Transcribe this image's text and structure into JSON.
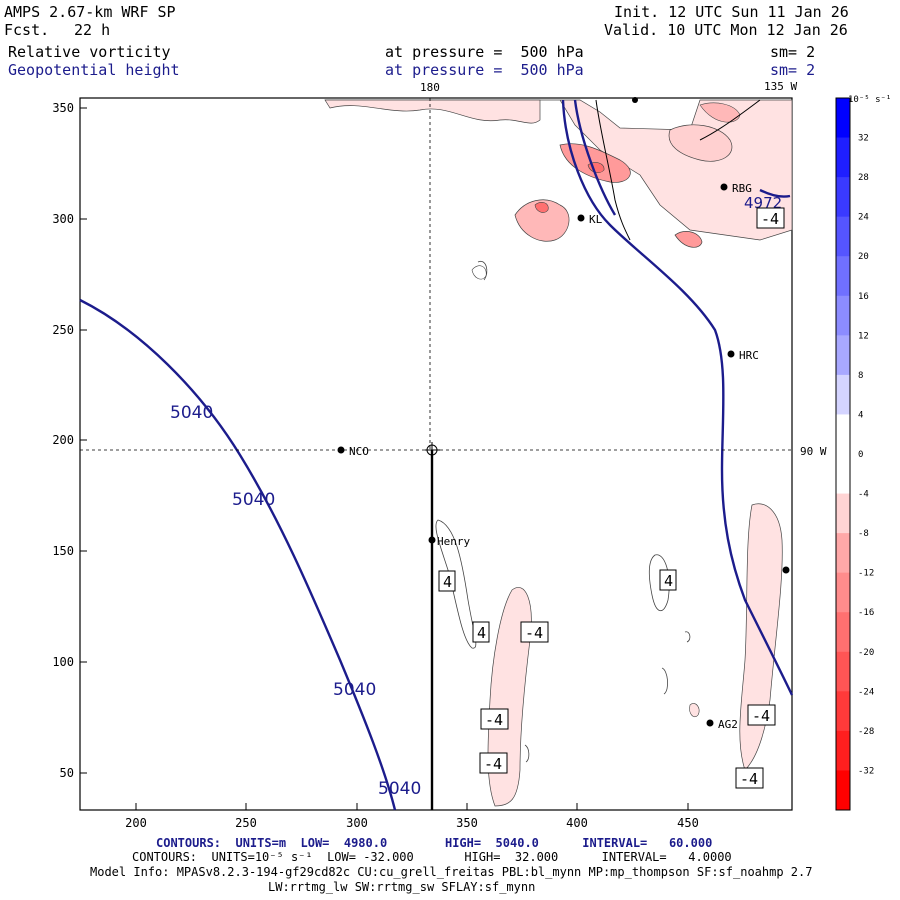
{
  "header": {
    "model": "AMPS 2.67-km WRF SP",
    "init": "Init. 12 UTC Sun 11 Jan 26",
    "fcst_label": "Fcst.",
    "fcst_value": "22 h",
    "valid": "Valid. 10 UTC Mon 12 Jan 26",
    "field1": "Relative vorticity",
    "field1_level": "at pressure =  500 hPa",
    "field1_sm": "sm= 2",
    "field2": "Geopotential height",
    "field2_level": "at pressure =  500 hPa",
    "field2_sm": "sm= 2"
  },
  "map": {
    "x_ticks": [
      "200",
      "250",
      "300",
      "350",
      "400",
      "450"
    ],
    "y_ticks": [
      "350",
      "300",
      "250",
      "200",
      "150",
      "100",
      "50"
    ],
    "lon_labels": {
      "top_180": "180",
      "top_135w": "135 W",
      "right_90w": "90 W"
    },
    "stations": [
      {
        "name": "NCO"
      },
      {
        "name": "Henry"
      },
      {
        "name": "HRC"
      },
      {
        "name": "RBG"
      },
      {
        "name": "KL"
      },
      {
        "name": "AG2"
      }
    ],
    "height_labels": [
      "5040",
      "5040",
      "5040",
      "5040",
      "4972"
    ],
    "vort_labels": [
      "4",
      "4",
      "4",
      "-4",
      "-4",
      "-4",
      "-4",
      "-4",
      "-4"
    ]
  },
  "colorbar": {
    "unit": "10⁻⁵ s⁻¹",
    "ticks": [
      "32",
      "28",
      "24",
      "20",
      "16",
      "12",
      "8",
      "4",
      "0",
      "-4",
      "-8",
      "-12",
      "-16",
      "-20",
      "-24",
      "-28",
      "-32"
    ],
    "colors": [
      "#0000ff",
      "#1f1fff",
      "#3a3aff",
      "#5555ff",
      "#7070ff",
      "#8c8cff",
      "#a8a8ff",
      "#d4d4ff",
      "#ffffff",
      "#ffffff",
      "#ffd4d4",
      "#ffa8a8",
      "#ff8c8c",
      "#ff7070",
      "#ff5555",
      "#ff3a3a",
      "#ff1f1f",
      "#ff0000"
    ]
  },
  "footer": {
    "contours1": "CONTOURS:  UNITS=m  LOW=  4980.0        HIGH=  5040.0      INTERVAL=   60.000",
    "contours2": "CONTOURS:  UNITS=10⁻⁵ s⁻¹  LOW= -32.000       HIGH=  32.000      INTERVAL=   4.0000",
    "model_info": "Model Info: MPASv8.2.3-194-gf29cd82c CU:cu_grell_freitas PBL:bl_mynn MP:mp_thompson SF:sf_noahmp 2.7",
    "model_info2": "LW:rrtmg_lw SW:rrtmg_sw SFLAY:sf_mynn"
  }
}
